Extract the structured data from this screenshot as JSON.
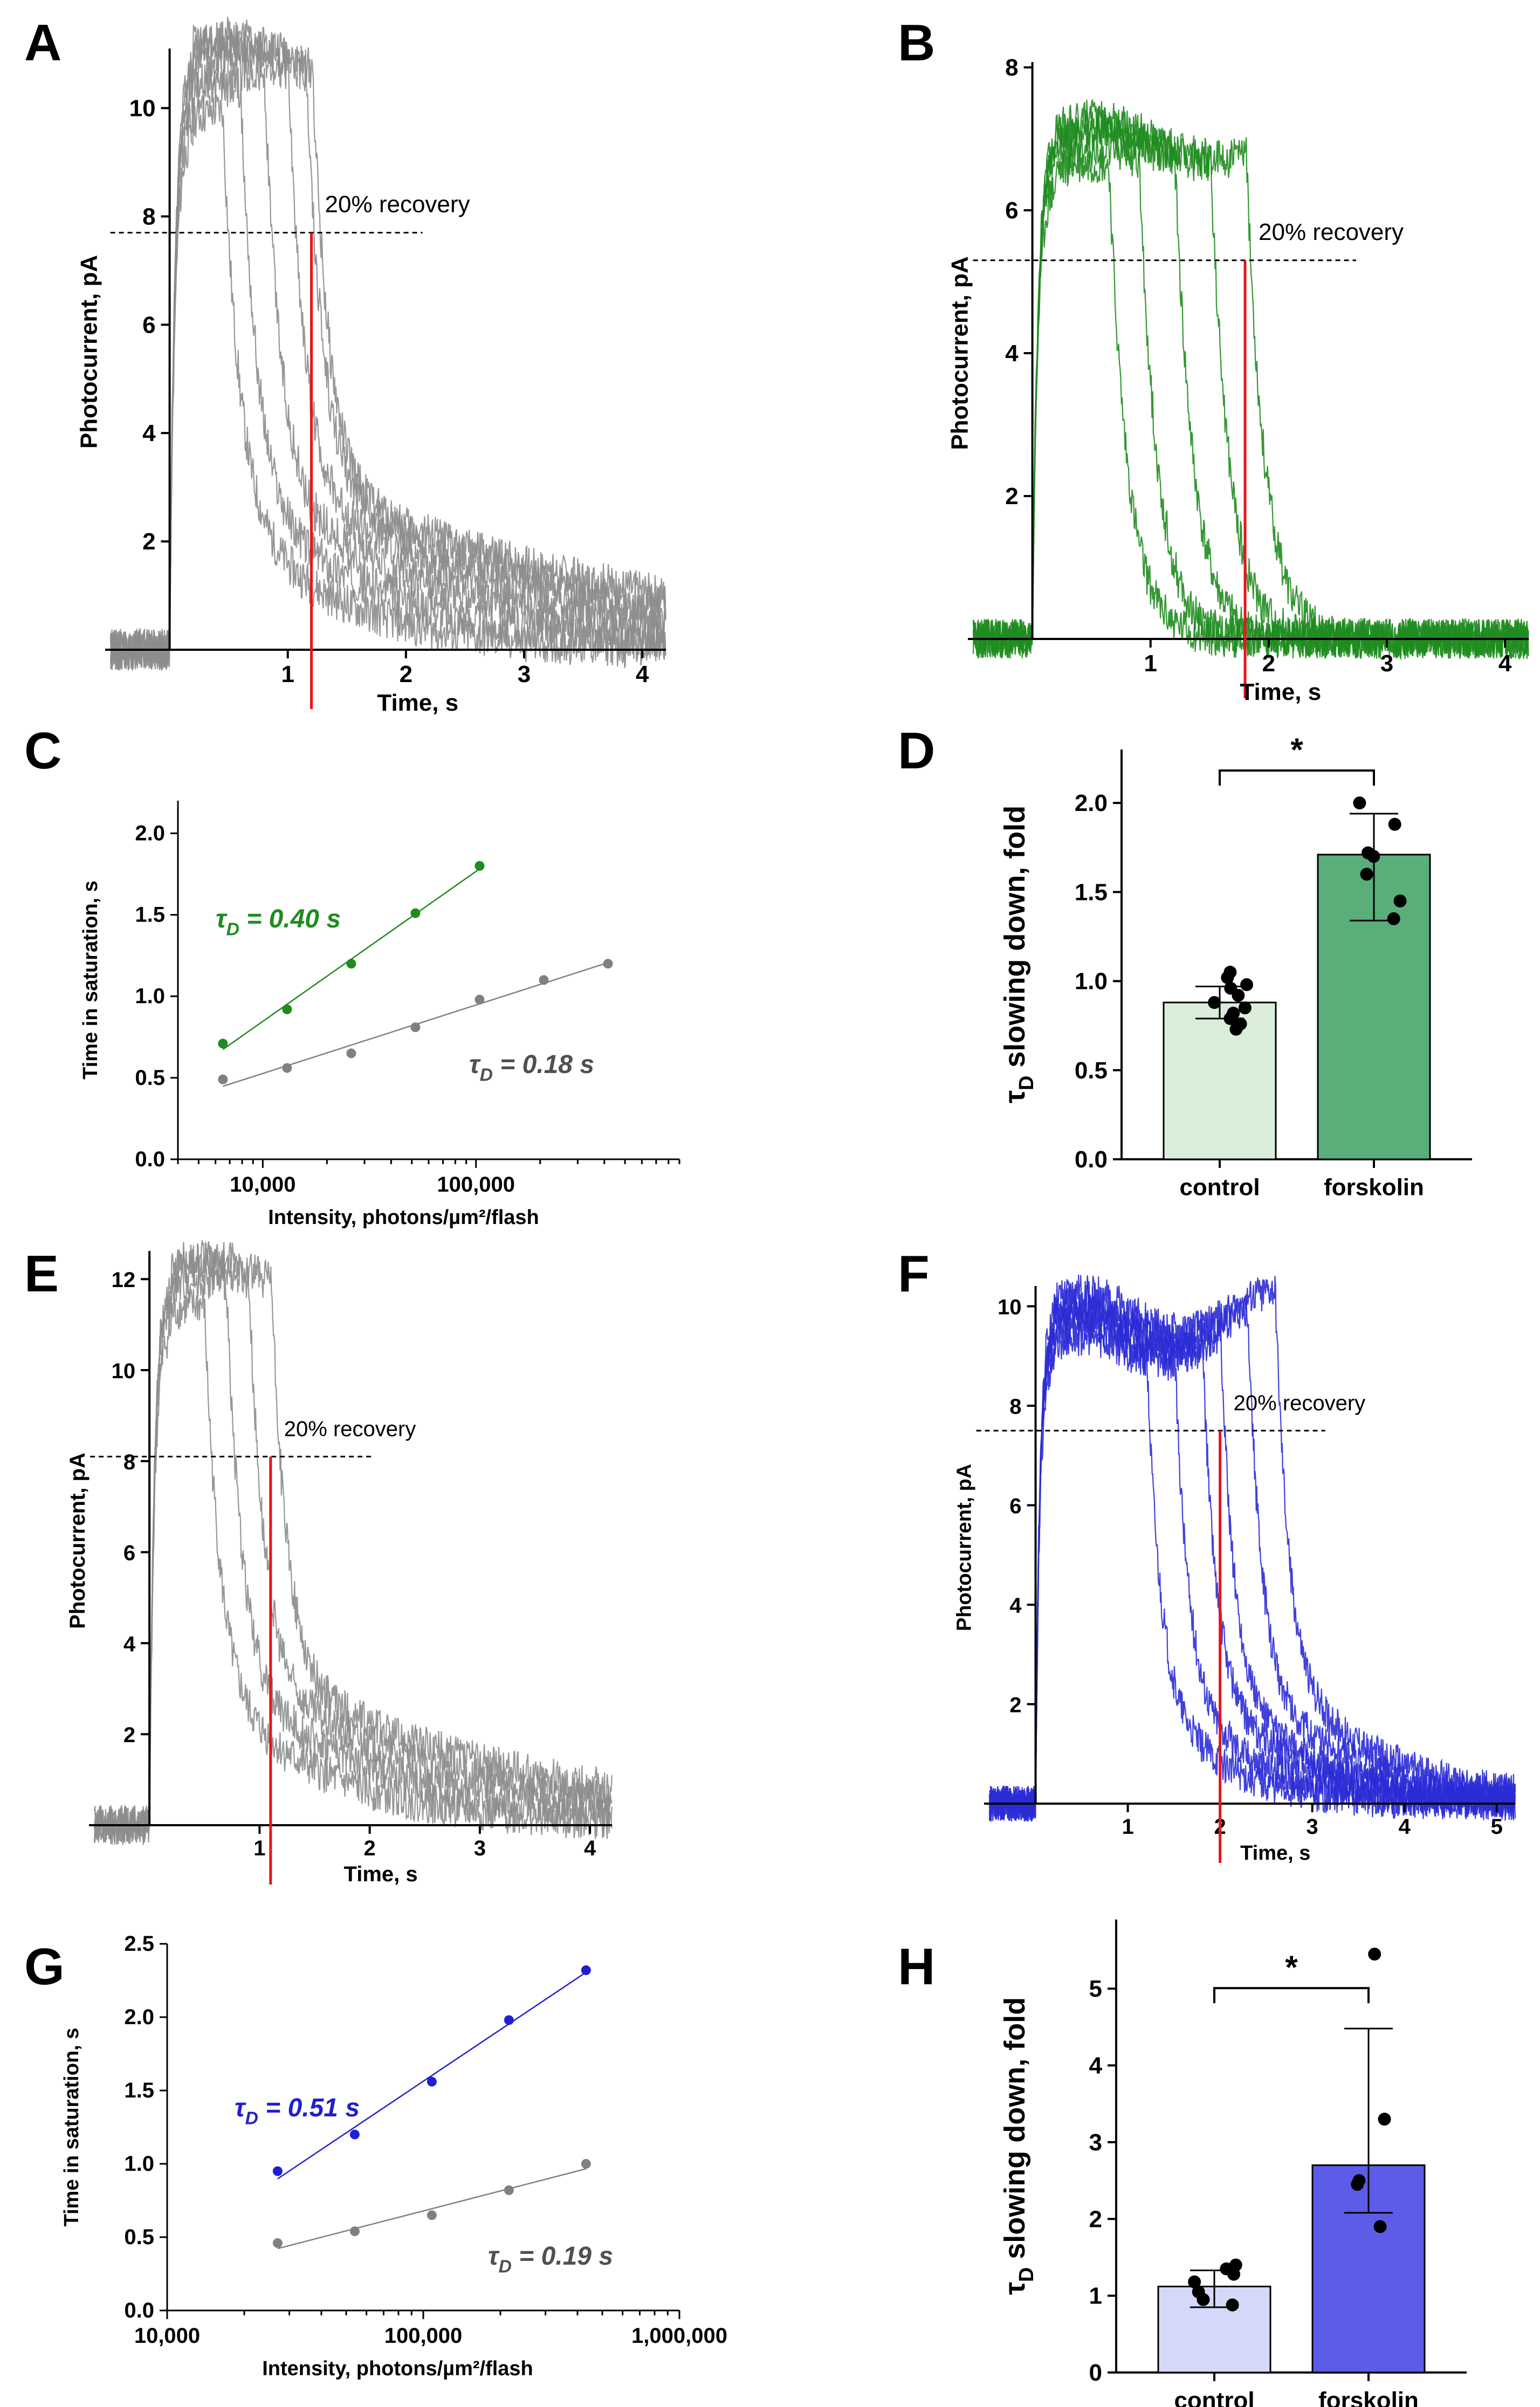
{
  "figure": {
    "panel_letters": [
      "A",
      "B",
      "C",
      "D",
      "E",
      "F",
      "G",
      "H"
    ]
  },
  "chart_data": [
    {
      "panel": "A",
      "type": "line",
      "xlabel": "Time, s",
      "ylabel": "Photocurrent, pA",
      "xlim": [
        -0.5,
        4.2
      ],
      "ylim": [
        0,
        11
      ],
      "xticks": [
        "1",
        "2",
        "3",
        "4"
      ],
      "yticks": [
        "2",
        "4",
        "6",
        "8",
        "10"
      ],
      "threshold_label": "20% recovery",
      "threshold_y": 7.7,
      "red_line_x": 1.2,
      "color": "#8c8c8c",
      "series": [
        {
          "name": "trace-1",
          "plateau": 9.6,
          "drop": 0.45,
          "tail_tau": 0.5
        },
        {
          "name": "trace-2",
          "plateau": 10.0,
          "drop": 0.6,
          "tail_tau": 0.7
        },
        {
          "name": "trace-3",
          "plateau": 10.3,
          "drop": 0.8,
          "tail_tau": 0.9
        },
        {
          "name": "trace-4",
          "plateau": 10.6,
          "drop": 1.0,
          "tail_tau": 1.1
        },
        {
          "name": "trace-5",
          "plateau": 10.8,
          "drop": 1.15,
          "tail_tau": 1.3
        },
        {
          "name": "trace-6",
          "plateau": 10.9,
          "drop": 1.2,
          "tail_tau": 1.5
        }
      ]
    },
    {
      "panel": "B",
      "type": "line",
      "xlabel": "Time, s",
      "ylabel": "Photocurrent, pA",
      "xlim": [
        -0.5,
        4.2
      ],
      "ylim": [
        0,
        8
      ],
      "xticks": [
        "1",
        "2",
        "3",
        "4"
      ],
      "yticks": [
        "2",
        "4",
        "6",
        "8"
      ],
      "threshold_label": "20% recovery",
      "threshold_y": 5.3,
      "red_line_x": 1.8,
      "color": "#1e8c1e",
      "series": [
        {
          "name": "trace-1",
          "plateau": 6.4,
          "drop": 0.65,
          "tail_tau": 0.12
        },
        {
          "name": "trace-2",
          "plateau": 6.6,
          "drop": 0.9,
          "tail_tau": 0.12
        },
        {
          "name": "trace-3",
          "plateau": 6.8,
          "drop": 1.2,
          "tail_tau": 0.12
        },
        {
          "name": "trace-4",
          "plateau": 6.9,
          "drop": 1.5,
          "tail_tau": 0.12
        },
        {
          "name": "trace-5",
          "plateau": 7.0,
          "drop": 1.8,
          "tail_tau": 0.12
        }
      ]
    },
    {
      "panel": "C",
      "type": "scatter",
      "xscale": "log",
      "xlabel": "Intensity, photons/µm²/flash",
      "ylabel": "Time in saturation, s",
      "xlim": [
        4000,
        900000
      ],
      "ylim": [
        0,
        2.2
      ],
      "xticks": [
        10000,
        100000
      ],
      "xtick_labels": [
        "10,000",
        "100,000"
      ],
      "yticks": [
        "0.0",
        "0.5",
        "1.0",
        "1.5",
        "2.0"
      ],
      "series": [
        {
          "name": "forskolin",
          "color": "#1e8c1e",
          "label": "τD = 0.40 s",
          "x": [
            6500,
            13000,
            26000,
            52000,
            104000
          ],
          "y": [
            0.71,
            0.92,
            1.2,
            1.51,
            1.8
          ]
        },
        {
          "name": "control",
          "color": "#808080",
          "label": "τD = 0.18 s",
          "x": [
            6500,
            13000,
            26000,
            52000,
            104000,
            208000,
            416000
          ],
          "y": [
            0.49,
            0.56,
            0.65,
            0.81,
            0.98,
            1.1,
            1.2
          ]
        }
      ]
    },
    {
      "panel": "D",
      "type": "bar",
      "ylabel": "τD slowing down, fold",
      "categories": [
        "control",
        "forskolin"
      ],
      "values": [
        0.88,
        1.71
      ],
      "sd_low": [
        0.79,
        1.34
      ],
      "sd_high": [
        0.97,
        1.94
      ],
      "colors": [
        "#d9edda",
        "#5aae7a"
      ],
      "points": [
        [
          1.05,
          1.02,
          0.98,
          0.96,
          0.92,
          0.88,
          0.85,
          0.82,
          0.79,
          0.76,
          0.73
        ],
        [
          2.0,
          1.88,
          1.72,
          1.7,
          1.6,
          1.45,
          1.35
        ]
      ],
      "ylim": [
        0,
        2.3
      ],
      "yticks": [
        "0.0",
        "0.5",
        "1.0",
        "1.5",
        "2.0"
      ],
      "significance": "*"
    },
    {
      "panel": "E",
      "type": "line",
      "xlabel": "Time, s",
      "ylabel": "Photocurrent, pA",
      "xlim": [
        -0.5,
        4.2
      ],
      "ylim": [
        0,
        12.5
      ],
      "xticks": [
        "1",
        "2",
        "3",
        "4"
      ],
      "yticks": [
        "2",
        "4",
        "6",
        "8",
        "10",
        "12"
      ],
      "threshold_label": "20% recovery",
      "threshold_y": 8.1,
      "red_line_x": 1.1,
      "color": "#8c8c8c",
      "series": [
        {
          "name": "trace-1",
          "plateau": 11.0,
          "drop": 0.5,
          "tail_tau": 0.6
        },
        {
          "name": "trace-2",
          "plateau": 11.5,
          "drop": 0.7,
          "tail_tau": 0.8
        },
        {
          "name": "trace-3",
          "plateau": 11.8,
          "drop": 0.9,
          "tail_tau": 1.0
        },
        {
          "name": "trace-4",
          "plateau": 12.0,
          "drop": 1.1,
          "tail_tau": 1.2
        }
      ]
    },
    {
      "panel": "F",
      "type": "line",
      "xlabel": "Time, s",
      "ylabel": "Photocurrent, pA",
      "xlim": [
        -0.5,
        5.2
      ],
      "ylim": [
        0,
        10.3
      ],
      "xticks": [
        "1",
        "2",
        "3",
        "4",
        "5"
      ],
      "yticks": [
        "2",
        "4",
        "6",
        "8",
        "10"
      ],
      "threshold_label": "20% recovery",
      "threshold_y": 7.5,
      "red_line_x": 2.0,
      "color": "#2b2bd6",
      "series": [
        {
          "name": "trace-1",
          "plateau": 9.0,
          "drop": 1.2,
          "tail_tau": 0.4
        },
        {
          "name": "trace-2",
          "plateau": 9.2,
          "drop": 1.5,
          "tail_tau": 0.45
        },
        {
          "name": "trace-3",
          "plateau": 9.4,
          "drop": 1.8,
          "tail_tau": 0.5
        },
        {
          "name": "trace-4",
          "plateau": 9.5,
          "drop": 2.0,
          "tail_tau": 0.5
        },
        {
          "name": "trace-5",
          "plateau": 9.7,
          "drop": 2.3,
          "tail_tau": 0.55
        },
        {
          "name": "trace-6",
          "plateau": 9.9,
          "drop": 2.6,
          "tail_tau": 0.6
        }
      ]
    },
    {
      "panel": "G",
      "type": "scatter",
      "xscale": "log",
      "xlabel": "Intensity, photons/µm²/flash",
      "ylabel": "Time in saturation, s",
      "xlim": [
        10000,
        1000000
      ],
      "ylim": [
        0,
        2.5
      ],
      "xticks": [
        10000,
        100000,
        1000000
      ],
      "xtick_labels": [
        "10,000",
        "100,000",
        "1,000,000"
      ],
      "yticks": [
        "0.0",
        "0.5",
        "1.0",
        "1.5",
        "2.0",
        "2.5"
      ],
      "series": [
        {
          "name": "forskolin",
          "color": "#1f1fd1",
          "label": "τD = 0.51 s",
          "x": [
            27000,
            54000,
            108000,
            216000,
            432000
          ],
          "y": [
            0.95,
            1.2,
            1.56,
            1.98,
            2.32
          ]
        },
        {
          "name": "control",
          "color": "#808080",
          "label": "τD = 0.19 s",
          "x": [
            27000,
            54000,
            108000,
            216000,
            432000
          ],
          "y": [
            0.46,
            0.54,
            0.65,
            0.82,
            1.0
          ]
        }
      ]
    },
    {
      "panel": "H",
      "type": "bar",
      "ylabel": "τD slowing down, fold",
      "categories": [
        "control",
        "forskolin"
      ],
      "values": [
        1.12,
        2.7
      ],
      "sd_low": [
        0.85,
        2.08
      ],
      "sd_high": [
        1.33,
        4.48
      ],
      "colors": [
        "#d6d8fa",
        "#5c5ce8"
      ],
      "points": [
        [
          1.4,
          1.35,
          1.28,
          1.18,
          1.05,
          0.95,
          0.88
        ],
        [
          5.45,
          3.3,
          2.5,
          2.45,
          1.9
        ]
      ],
      "ylim": [
        0,
        5.9
      ],
      "yticks": [
        "0",
        "1",
        "2",
        "3",
        "4",
        "5"
      ],
      "significance": "*"
    }
  ]
}
